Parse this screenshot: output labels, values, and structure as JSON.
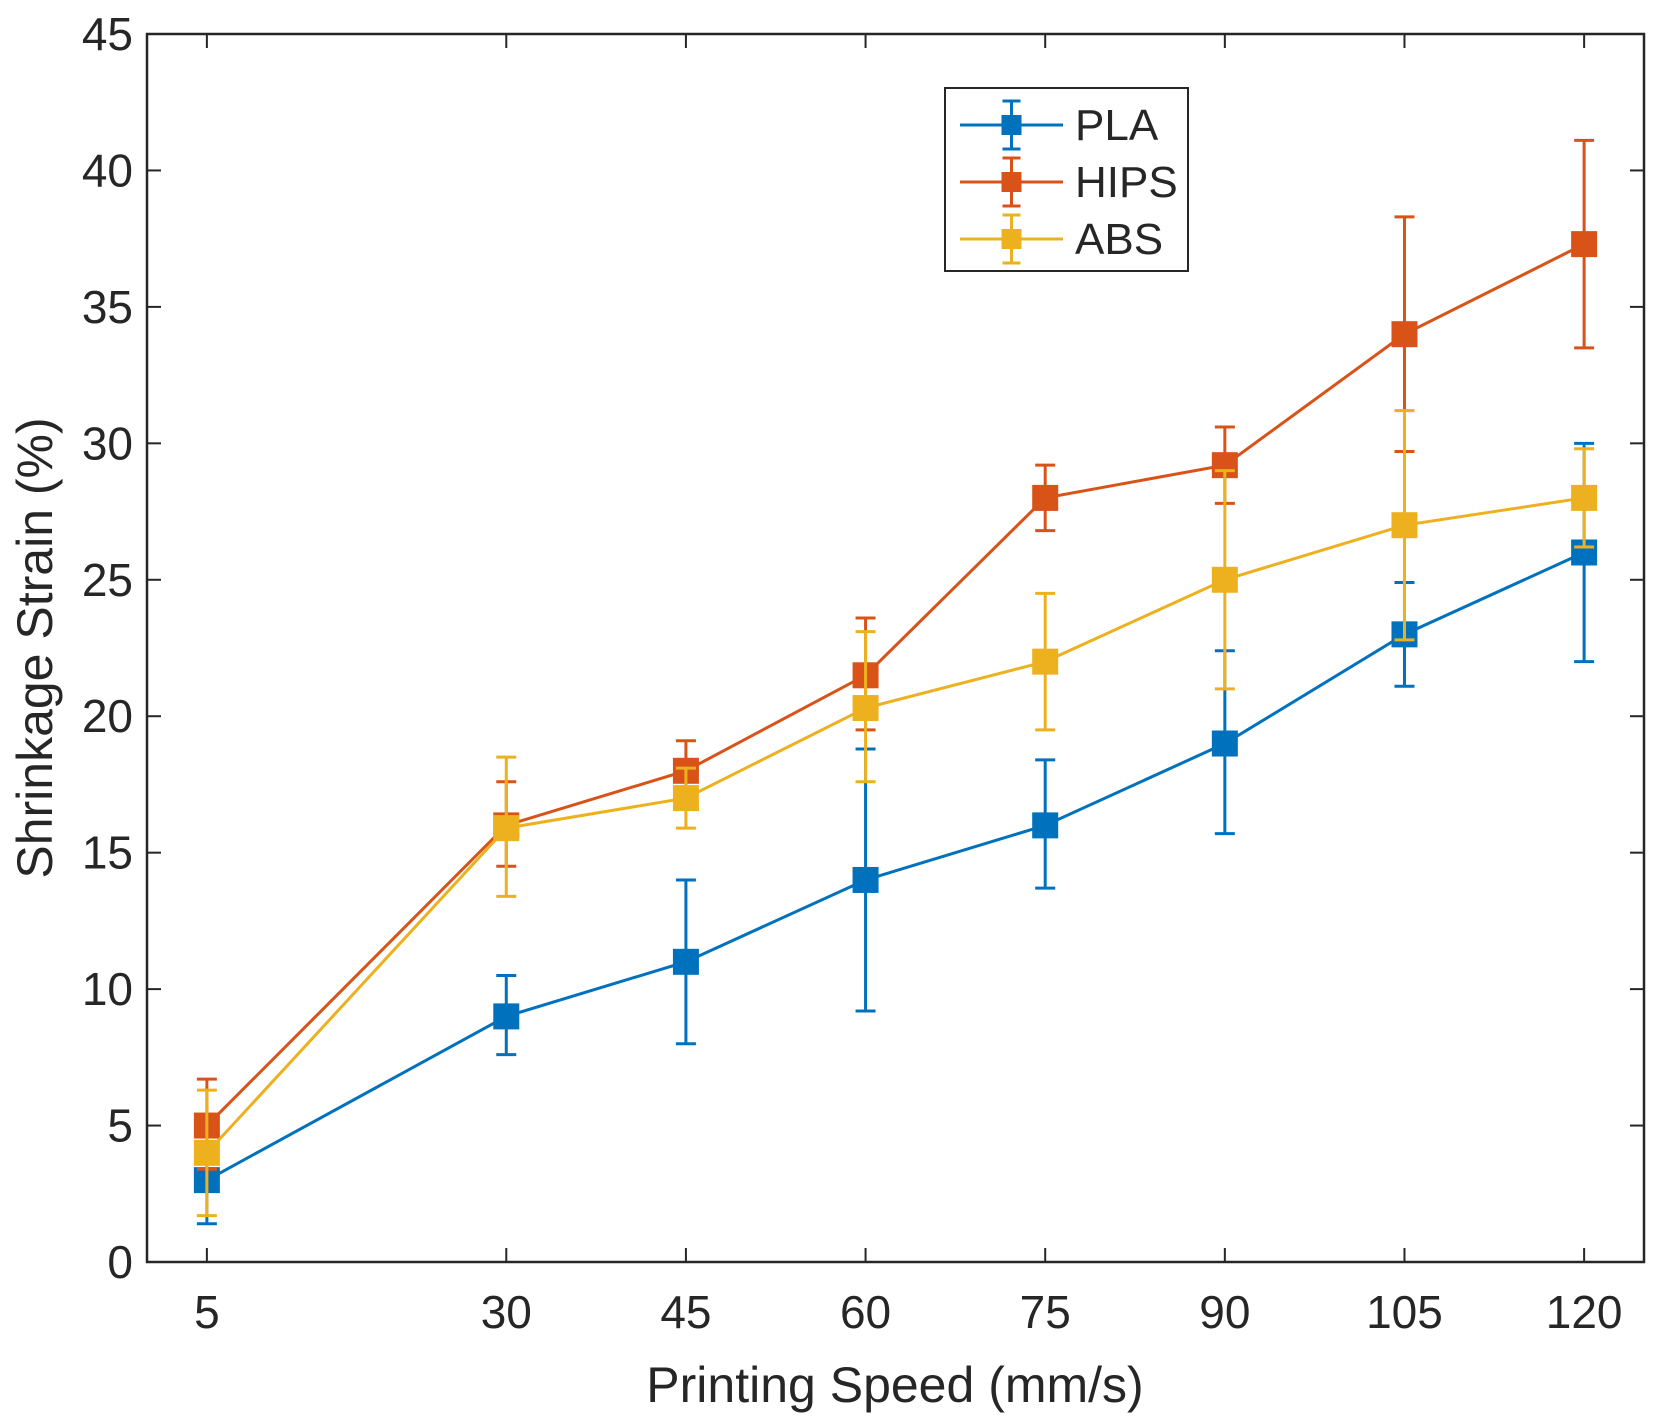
{
  "chart_data": {
    "type": "line",
    "title": "",
    "xlabel": "Printing Speed (mm/s)",
    "ylabel": "Shrinkage Strain (%)",
    "xlim": [
      0,
      125
    ],
    "ylim": [
      0,
      45
    ],
    "grid": false,
    "legend_position": "top-center",
    "x": [
      5,
      30,
      45,
      60,
      75,
      90,
      105,
      120
    ],
    "x_tick_labels": [
      "5",
      "30",
      "45",
      "60",
      "75",
      "90",
      "105",
      "120"
    ],
    "y_ticks": [
      0,
      5,
      10,
      15,
      20,
      25,
      30,
      35,
      40,
      45
    ],
    "y_tick_labels": [
      "0",
      "5",
      "10",
      "15",
      "20",
      "25",
      "30",
      "35",
      "40",
      "45"
    ],
    "series": [
      {
        "name": "PLA",
        "color": "#0072BD",
        "values": [
          3,
          9,
          11,
          14,
          16,
          19,
          23,
          26
        ],
        "error_low": [
          1.4,
          7.6,
          8.0,
          9.2,
          13.7,
          15.7,
          21.1,
          22.0
        ],
        "error_high": [
          4.4,
          10.5,
          14.0,
          18.8,
          18.4,
          22.4,
          24.9,
          30.0
        ]
      },
      {
        "name": "HIPS",
        "color": "#D95319",
        "values": [
          5,
          16,
          18,
          21.5,
          28,
          29.2,
          34,
          37.3
        ],
        "error_low": [
          3.4,
          14.5,
          16.9,
          19.5,
          26.8,
          27.8,
          29.7,
          33.5
        ],
        "error_high": [
          6.7,
          17.6,
          19.1,
          23.6,
          29.2,
          30.6,
          38.3,
          41.1
        ]
      },
      {
        "name": "ABS",
        "color": "#EDB120",
        "values": [
          4,
          15.9,
          17,
          20.3,
          22,
          25,
          27,
          28
        ],
        "error_low": [
          1.7,
          13.4,
          15.9,
          17.6,
          19.5,
          21.0,
          22.8,
          26.2
        ],
        "error_high": [
          6.3,
          18.5,
          18.1,
          23.1,
          24.5,
          29.0,
          31.2,
          29.8
        ]
      }
    ]
  }
}
